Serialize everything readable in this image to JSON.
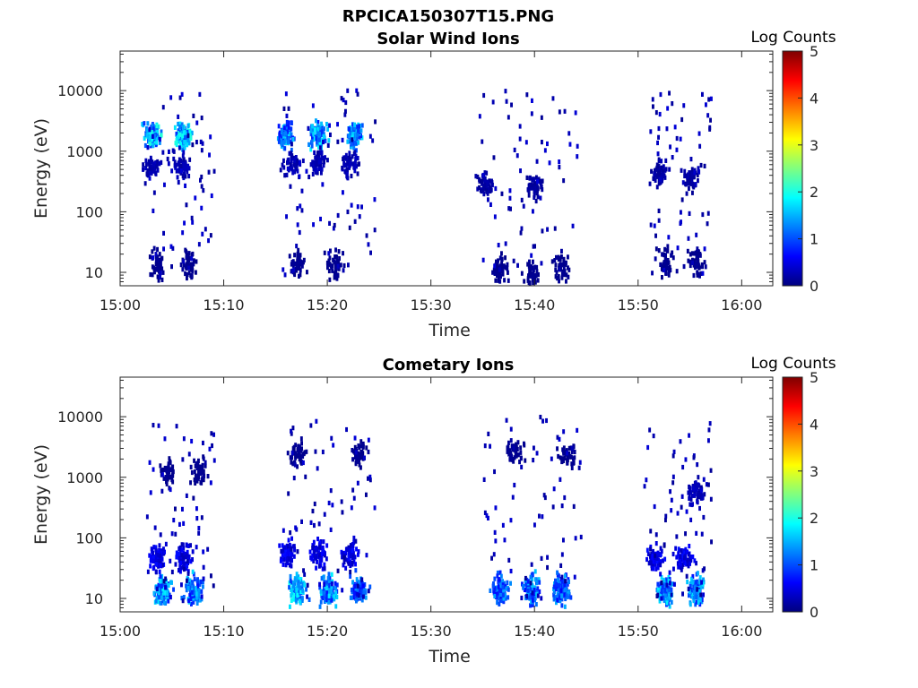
{
  "figure_title": "RPCICA150307T15.PNG",
  "chart_data": [
    {
      "type": "heatmap",
      "title": "Solar Wind Ions",
      "xlabel": "Time",
      "ylabel": "Energy (eV)",
      "x_ticks": [
        "15:00",
        "15:10",
        "15:20",
        "15:30",
        "15:40",
        "15:50",
        "16:00"
      ],
      "xlim": [
        "15:00",
        "16:03"
      ],
      "y_ticks": [
        {
          "value": 10,
          "label": "10"
        },
        {
          "value": 100,
          "label": "100"
        },
        {
          "value": 1000,
          "label": "1000"
        },
        {
          "value": 10000,
          "label": "10000"
        }
      ],
      "ylim": [
        6,
        45000
      ],
      "yscale": "log",
      "colorbar": {
        "title": "Log Counts",
        "range": [
          0,
          5
        ],
        "ticks": [
          "0",
          "1",
          "2",
          "3",
          "4",
          "5"
        ],
        "colormap": "jet"
      },
      "series": [
        {
          "t_start": "15:02:30",
          "t_end": "15:09:00",
          "clusters": [
            {
              "t": "15:03:00",
              "e": 2000,
              "level": 1.8
            },
            {
              "t": "15:05:50",
              "e": 2000,
              "level": 1.8
            },
            {
              "t": "15:03:00",
              "e": 600,
              "level": 0.3
            },
            {
              "t": "15:05:50",
              "e": 600,
              "level": 0.3
            },
            {
              "t": "15:03:30",
              "e": 15,
              "level": 0.1
            },
            {
              "t": "15:06:30",
              "e": 15,
              "level": 0.1
            }
          ]
        },
        {
          "t_start": "15:15:30",
          "t_end": "15:24:30",
          "clusters": [
            {
              "t": "15:15:50",
              "e": 2000,
              "level": 1.5
            },
            {
              "t": "15:19:00",
              "e": 2000,
              "level": 1.7
            },
            {
              "t": "15:22:30",
              "e": 2000,
              "level": 1.6
            },
            {
              "t": "15:16:30",
              "e": 700,
              "level": 0.3
            },
            {
              "t": "15:19:00",
              "e": 700,
              "level": 0.3
            },
            {
              "t": "15:22:00",
              "e": 700,
              "level": 0.3
            },
            {
              "t": "15:17:00",
              "e": 15,
              "level": 0.1
            },
            {
              "t": "15:20:30",
              "e": 15,
              "level": 0.1
            }
          ]
        },
        {
          "t_start": "15:34:30",
          "t_end": "15:44:30",
          "clusters": [
            {
              "t": "15:35:00",
              "e": 300,
              "level": 0.2
            },
            {
              "t": "15:40:00",
              "e": 300,
              "level": 0.2
            },
            {
              "t": "15:36:30",
              "e": 12,
              "level": 0.1
            },
            {
              "t": "15:39:30",
              "e": 10,
              "level": 0.1
            },
            {
              "t": "15:42:30",
              "e": 12,
              "level": 0.1
            }
          ]
        },
        {
          "t_start": "15:51:00",
          "t_end": "15:57:00",
          "clusters": [
            {
              "t": "15:52:00",
              "e": 500,
              "level": 0.2
            },
            {
              "t": "15:55:00",
              "e": 400,
              "level": 0.2
            },
            {
              "t": "15:52:30",
              "e": 15,
              "level": 0.1
            },
            {
              "t": "15:55:30",
              "e": 15,
              "level": 0.1
            }
          ]
        }
      ]
    },
    {
      "type": "heatmap",
      "title": "Cometary Ions",
      "xlabel": "Time",
      "ylabel": "Energy (eV)",
      "x_ticks": [
        "15:00",
        "15:10",
        "15:20",
        "15:30",
        "15:40",
        "15:50",
        "16:00"
      ],
      "xlim": [
        "15:00",
        "16:03"
      ],
      "y_ticks": [
        {
          "value": 10,
          "label": "10"
        },
        {
          "value": 100,
          "label": "100"
        },
        {
          "value": 1000,
          "label": "1000"
        },
        {
          "value": 10000,
          "label": "10000"
        }
      ],
      "ylim": [
        6,
        45000
      ],
      "yscale": "log",
      "colorbar": {
        "title": "Log Counts",
        "range": [
          0,
          5
        ],
        "ticks": [
          "0",
          "1",
          "2",
          "3",
          "4",
          "5"
        ],
        "colormap": "jet"
      },
      "series": [
        {
          "t_start": "15:02:30",
          "t_end": "15:09:00",
          "clusters": [
            {
              "t": "15:04:00",
              "e": 15,
              "level": 1.6
            },
            {
              "t": "15:07:00",
              "e": 15,
              "level": 1.5
            },
            {
              "t": "15:03:30",
              "e": 50,
              "level": 0.6
            },
            {
              "t": "15:06:00",
              "e": 50,
              "level": 0.6
            },
            {
              "t": "15:04:30",
              "e": 1300,
              "level": 0.1
            },
            {
              "t": "15:07:30",
              "e": 1300,
              "level": 0.1
            }
          ]
        },
        {
          "t_start": "15:15:30",
          "t_end": "15:24:30",
          "clusters": [
            {
              "t": "15:17:00",
              "e": 15,
              "level": 1.7
            },
            {
              "t": "15:20:00",
              "e": 15,
              "level": 1.6
            },
            {
              "t": "15:23:00",
              "e": 15,
              "level": 1.3
            },
            {
              "t": "15:16:00",
              "e": 60,
              "level": 0.6
            },
            {
              "t": "15:19:00",
              "e": 60,
              "level": 0.6
            },
            {
              "t": "15:22:00",
              "e": 60,
              "level": 0.6
            },
            {
              "t": "15:17:00",
              "e": 2500,
              "level": 0.1
            },
            {
              "t": "15:23:00",
              "e": 2500,
              "level": 0.1
            }
          ]
        },
        {
          "t_start": "15:35:00",
          "t_end": "15:44:30",
          "clusters": [
            {
              "t": "15:36:30",
              "e": 15,
              "level": 1.3
            },
            {
              "t": "15:39:30",
              "e": 15,
              "level": 1.4
            },
            {
              "t": "15:42:30",
              "e": 15,
              "level": 1.3
            },
            {
              "t": "15:38:00",
              "e": 3000,
              "level": 0.1
            },
            {
              "t": "15:43:00",
              "e": 2500,
              "level": 0.1
            }
          ]
        },
        {
          "t_start": "15:50:30",
          "t_end": "15:57:00",
          "clusters": [
            {
              "t": "15:52:30",
              "e": 15,
              "level": 1.6
            },
            {
              "t": "15:55:30",
              "e": 15,
              "level": 1.5
            },
            {
              "t": "15:51:30",
              "e": 50,
              "level": 0.6
            },
            {
              "t": "15:54:30",
              "e": 50,
              "level": 0.6
            },
            {
              "t": "15:55:30",
              "e": 600,
              "level": 0.3
            }
          ]
        }
      ]
    }
  ]
}
